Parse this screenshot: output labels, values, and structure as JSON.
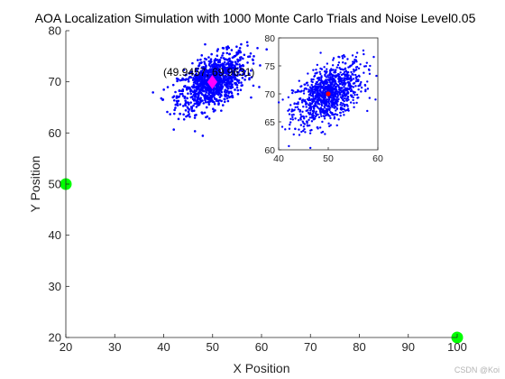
{
  "watermark": "CSDN @Koi",
  "chart_data": [
    {
      "type": "scatter",
      "title": "AOA Localization Simulation with 1000 Monte Carlo Trials and Noise Level0.05",
      "xlabel": "X Position",
      "ylabel": "Y Position",
      "xlim": [
        20,
        100
      ],
      "ylim": [
        20,
        80
      ],
      "x_ticks": [
        "20",
        "30",
        "40",
        "50",
        "60",
        "70",
        "80",
        "90",
        "100"
      ],
      "y_ticks": [
        "20",
        "30",
        "40",
        "50",
        "60",
        "70",
        "80"
      ],
      "grid": false,
      "box": false,
      "anchors": {
        "color": "#00ff00",
        "points": [
          {
            "x": 20,
            "y": 50
          },
          {
            "x": 100,
            "y": 20
          }
        ]
      },
      "estimates": {
        "color": "#0000ff",
        "count": 1000,
        "center": {
          "x": 50,
          "y": 70
        },
        "spread_x": 3.5,
        "spread_y": 2.8,
        "correlation": 0.5
      },
      "mean_marker": {
        "x": 49.9457,
        "y": 69.9631,
        "shape": "diamond",
        "color": "#ff00ff"
      },
      "annotation": "(49.9457, 69.9631)"
    },
    {
      "type": "scatter",
      "role": "inset",
      "xlim": [
        40,
        60
      ],
      "ylim": [
        60,
        80
      ],
      "x_ticks": [
        "40",
        "50",
        "60"
      ],
      "y_ticks": [
        "60",
        "65",
        "70",
        "75",
        "80"
      ],
      "box": true,
      "estimates_color": "#0000ff",
      "true_position": {
        "x": 50,
        "y": 70,
        "color": "#ff0000"
      }
    }
  ]
}
